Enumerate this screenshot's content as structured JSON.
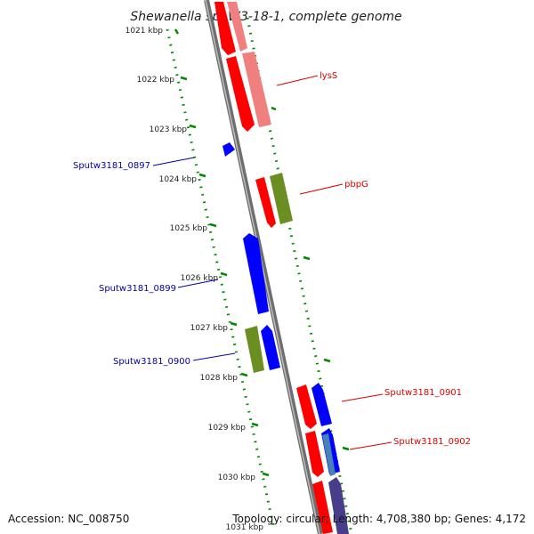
{
  "title": "Shewanella sp. W3-18-1, complete genome",
  "footer": {
    "accession": "Accession: NC_008750",
    "summary": "Topology: circular; Length: 4,708,380 bp; Genes: 4,172"
  },
  "colors": {
    "forward_gene": "#ff0000",
    "reverse_gene": "#0000ff",
    "rna_feature": "#6b8e23",
    "annotation_red": "#dd0000",
    "annotation_blue": "#0000aa",
    "tick_green": "#008800",
    "backbone": "#888888"
  },
  "kbp_ticks": [
    "1021 kbp",
    "1022 kbp",
    "1023 kbp",
    "1024 kbp",
    "1025 kbp",
    "1026 kbp",
    "1027 kbp",
    "1028 kbp",
    "1029 kbp",
    "1030 kbp",
    "1031 kbp"
  ],
  "gene_labels": [
    {
      "text": "lysS",
      "color": "red"
    },
    {
      "text": "pbpG",
      "color": "red"
    },
    {
      "text": "Sputw3181_0897",
      "color": "blue"
    },
    {
      "text": "Sputw3181_0899",
      "color": "blue"
    },
    {
      "text": "Sputw3181_0900",
      "color": "blue"
    },
    {
      "text": "Sputw3181_0901",
      "color": "red"
    },
    {
      "text": "Sputw3181_0902",
      "color": "red"
    }
  ]
}
